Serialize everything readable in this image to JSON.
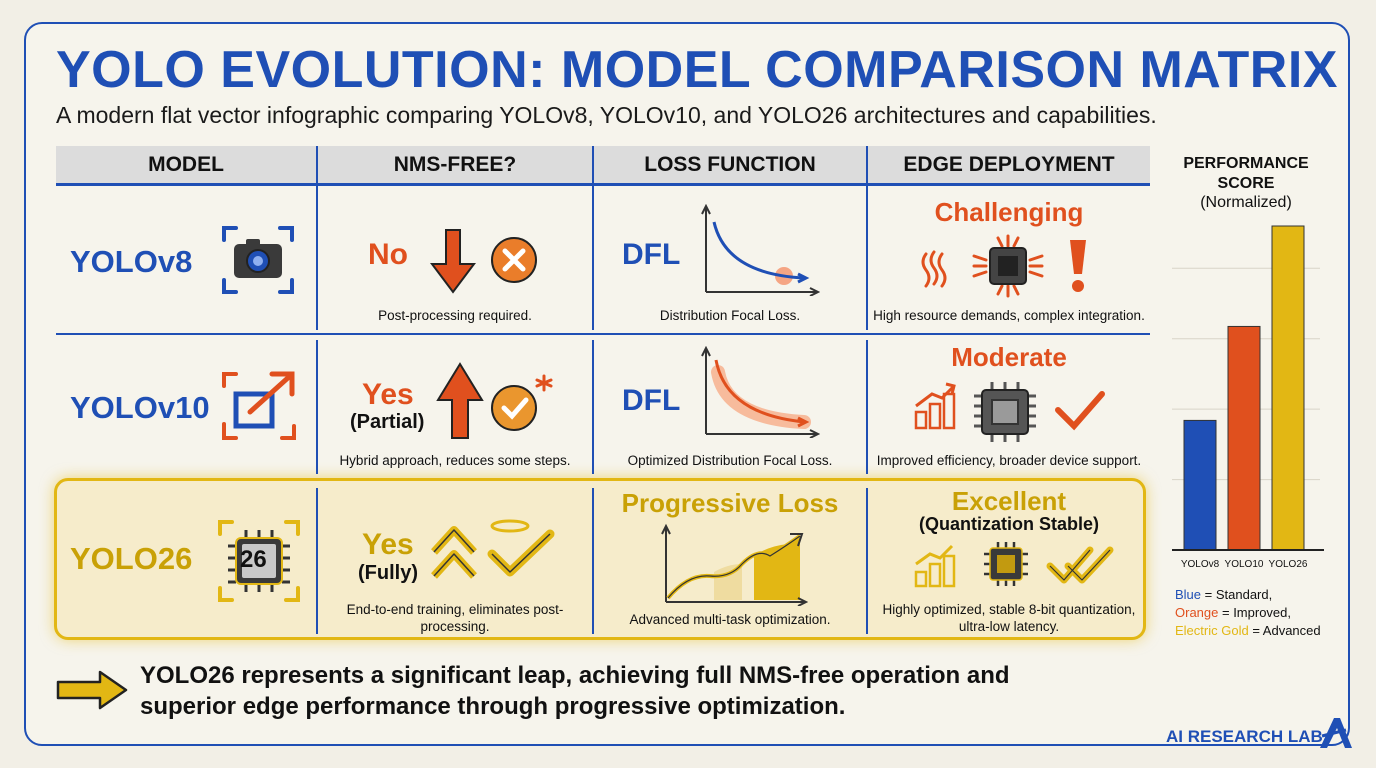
{
  "title": "YOLO EVOLUTION: MODEL COMPARISON MATRIX",
  "subtitle": "A modern flat vector infographic comparing YOLOv8, YOLOv10, and YOLO26 architectures and capabilities.",
  "headers": [
    "MODEL",
    "NMS-FREE?",
    "LOSS FUNCTION",
    "EDGE DEPLOYMENT"
  ],
  "colors": {
    "blue": "#1f4fb5",
    "orange": "#e0501e",
    "gold": "#e2b714",
    "gold_text": "#c9a106"
  },
  "rows": [
    {
      "model": "YOLOv8",
      "model_icon": "camera-icon",
      "nms_value": "No",
      "nms_sub": "",
      "nms_caption": "Post-processing required.",
      "loss_value": "DFL",
      "loss_caption": "Distribution Focal Loss.",
      "edge_value": "Challenging",
      "edge_sub": "",
      "edge_caption": "High resource demands, complex integration."
    },
    {
      "model": "YOLOv10",
      "model_icon": "expand-arrow-icon",
      "nms_value": "Yes",
      "nms_sub": "(Partial)",
      "nms_caption": "Hybrid approach, reduces some steps.",
      "loss_value": "DFL",
      "loss_caption": "Optimized Distribution Focal Loss.",
      "edge_value": "Moderate",
      "edge_sub": "",
      "edge_caption": "Improved efficiency, broader device support."
    },
    {
      "model": "YOLO26",
      "model_icon": "chip-icon",
      "chip_label": "26",
      "nms_value": "Yes",
      "nms_sub": "(Fully)",
      "nms_caption": "End-to-end training, eliminates post-processing.",
      "loss_value": "Progressive Loss",
      "loss_caption": "Advanced multi-task optimization.",
      "edge_value": "Excellent",
      "edge_sub": "(Quantization Stable)",
      "edge_caption": "Highly optimized, stable 8-bit quantization, ultra-low latency."
    }
  ],
  "performance": {
    "title": "PERFORMANCE SCORE",
    "subtitle": "(Normalized)",
    "legend": [
      {
        "key": "Blue",
        "desc": " = Standard,",
        "color": "#1f4fb5"
      },
      {
        "key": "Orange",
        "desc": " = Improved,",
        "color": "#e0501e"
      },
      {
        "key": "Electric Gold",
        "desc": " = Advanced",
        "color": "#e2b714"
      }
    ]
  },
  "chart_data": {
    "type": "bar",
    "categories": [
      "YOLOv8",
      "YOLO10",
      "YOLO26"
    ],
    "values": [
      40,
      69,
      100
    ],
    "ylim": [
      0,
      100
    ],
    "colors": [
      "#1f4fb5",
      "#e0501e",
      "#e2b714"
    ],
    "grid": true
  },
  "footer": "YOLO26 represents a significant leap, achieving full NMS-free operation and superior edge performance through progressive optimization.",
  "brand": "AI RESEARCH LAB"
}
